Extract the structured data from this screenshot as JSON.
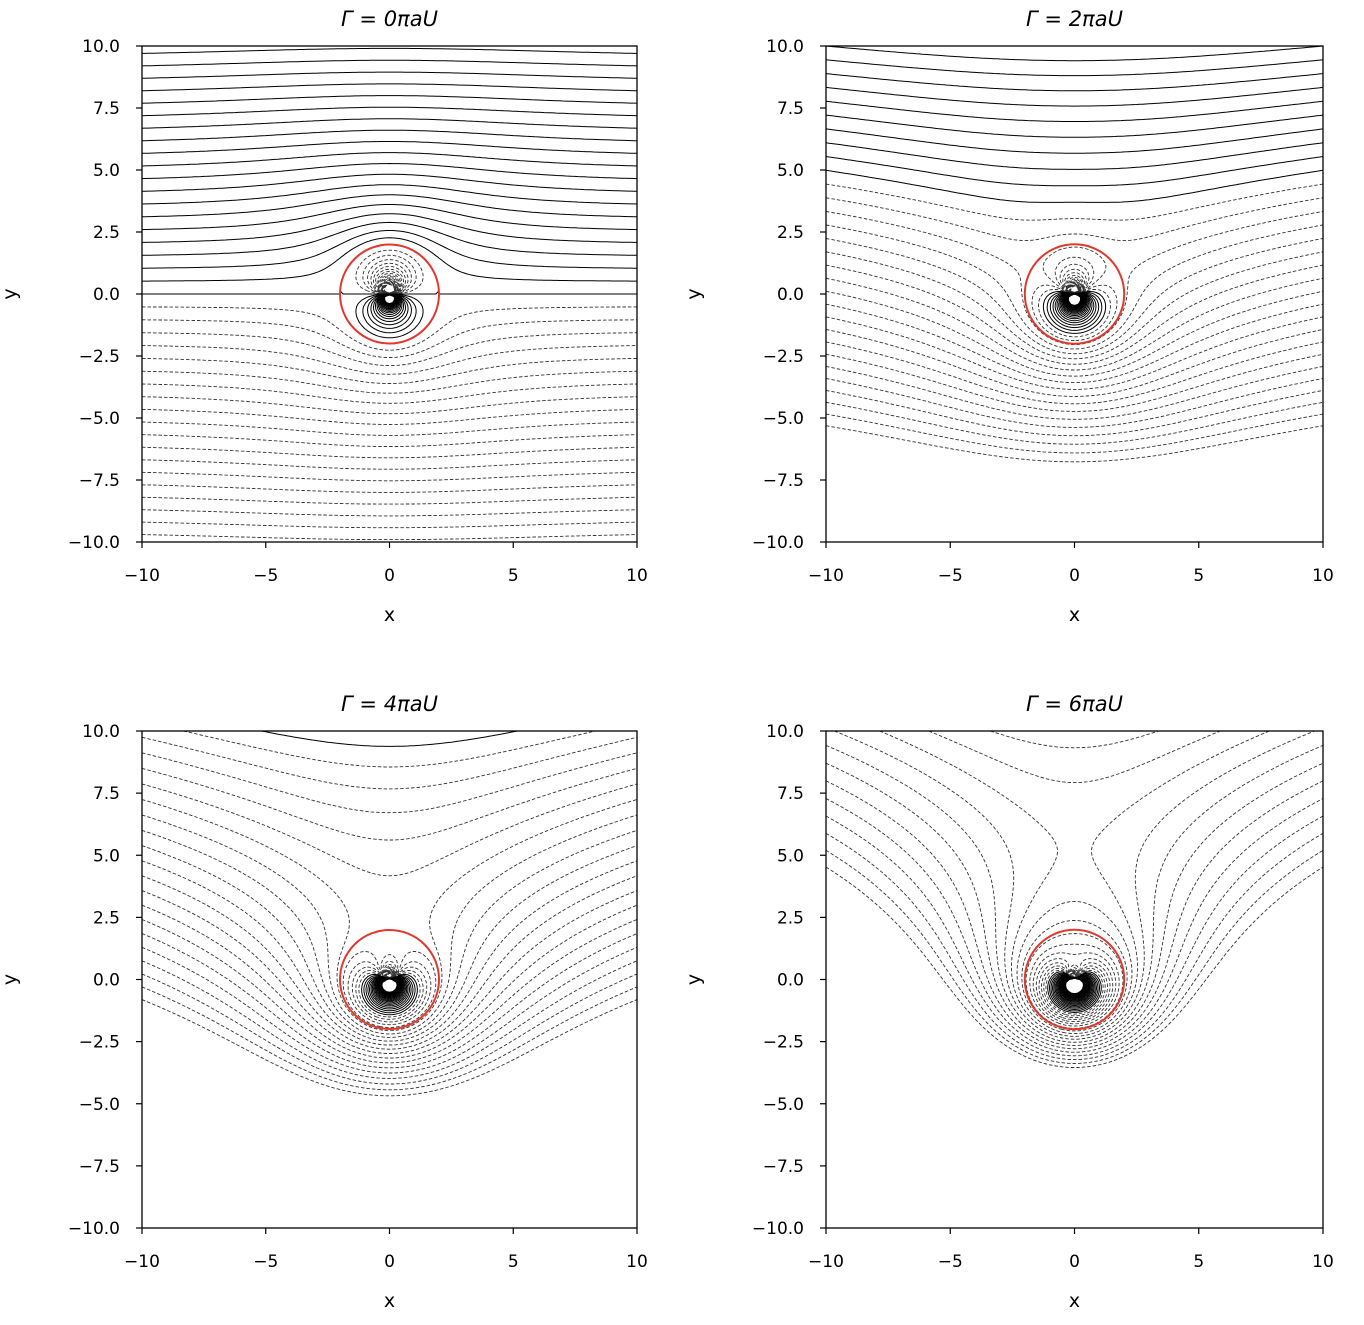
{
  "chart_data": [
    {
      "type": "contour",
      "title": "Γ = 0πaU",
      "circulation_coeff": 0,
      "xlabel": "x",
      "ylabel": "y",
      "xlim": [
        -10,
        10
      ],
      "ylim": [
        -10,
        10
      ],
      "xticks": [
        "−10",
        "−5",
        "0",
        "5",
        "10"
      ],
      "yticks": [
        "10.0",
        "7.5",
        "5.0",
        "2.5",
        "0.0",
        "−2.5",
        "−5.0",
        "−7.5",
        "−10.0"
      ],
      "cylinder_radius": 2,
      "U": 1,
      "levels": {
        "min": -10,
        "max": 10,
        "step": 0.5
      },
      "negative_linestyle": "dashed",
      "cylinder_color": "#e03a2f",
      "line_color": "#000000"
    },
    {
      "type": "contour",
      "title": "Γ = 2πaU",
      "circulation_coeff": 2,
      "xlabel": "x",
      "ylabel": "y",
      "xlim": [
        -10,
        10
      ],
      "ylim": [
        -10,
        10
      ],
      "xticks": [
        "−10",
        "−5",
        "0",
        "5",
        "10"
      ],
      "yticks": [
        "10.0",
        "7.5",
        "5.0",
        "2.5",
        "0.0",
        "−2.5",
        "−5.0",
        "−7.5",
        "−10.0"
      ],
      "cylinder_radius": 2,
      "U": 1,
      "levels": {
        "min": -10,
        "max": 10,
        "step": 0.5
      },
      "negative_linestyle": "dashed",
      "cylinder_color": "#e03a2f",
      "line_color": "#000000"
    },
    {
      "type": "contour",
      "title": "Γ = 4πaU",
      "circulation_coeff": 4,
      "xlabel": "x",
      "ylabel": "y",
      "xlim": [
        -10,
        10
      ],
      "ylim": [
        -10,
        10
      ],
      "xticks": [
        "−10",
        "−5",
        "0",
        "5",
        "10"
      ],
      "yticks": [
        "10.0",
        "7.5",
        "5.0",
        "2.5",
        "0.0",
        "−2.5",
        "−5.0",
        "−7.5",
        "−10.0"
      ],
      "cylinder_radius": 2,
      "U": 1,
      "levels": {
        "min": -10,
        "max": 10,
        "step": 0.5
      },
      "negative_linestyle": "dashed",
      "cylinder_color": "#e03a2f",
      "line_color": "#000000"
    },
    {
      "type": "contour",
      "title": "Γ = 6πaU",
      "circulation_coeff": 6,
      "xlabel": "x",
      "ylabel": "y",
      "xlim": [
        -10,
        10
      ],
      "ylim": [
        -10,
        10
      ],
      "xticks": [
        "−10",
        "−5",
        "0",
        "5",
        "10"
      ],
      "yticks": [
        "10.0",
        "7.5",
        "5.0",
        "2.5",
        "0.0",
        "−2.5",
        "−5.0",
        "−7.5",
        "−10.0"
      ],
      "cylinder_radius": 2,
      "U": 1,
      "levels": {
        "min": -10,
        "max": 10,
        "step": 0.5
      },
      "negative_linestyle": "dashed",
      "cylinder_color": "#e03a2f",
      "line_color": "#000000"
    }
  ]
}
